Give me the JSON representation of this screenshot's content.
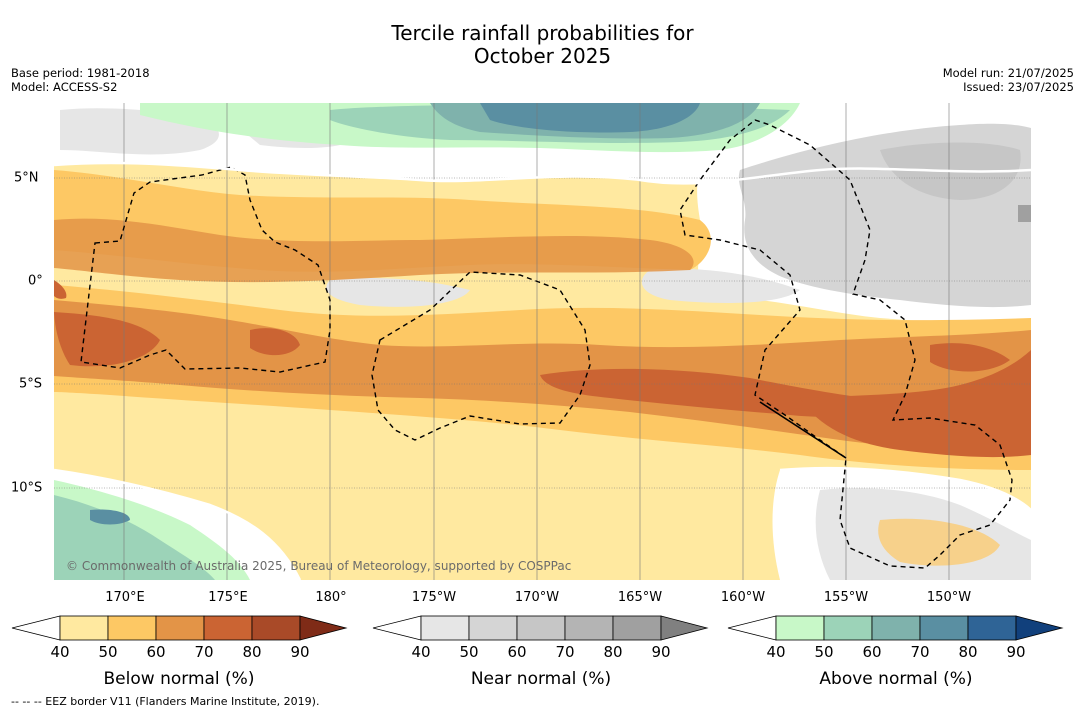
{
  "title_line1": "Tercile rainfall probabilities for",
  "title_line2": "October 2025",
  "base_period": "Base period: 1981-2018",
  "model": "Model: ACCESS-S2",
  "model_run": "Model run: 21/07/2025",
  "issued": "Issued: 23/07/2025",
  "copyright": "© Commonwealth of Australia 2025, Bureau of Meteorology, supported by COSPPac",
  "lon_labels": [
    "170°E",
    "175°E",
    "180°",
    "175°W",
    "170°W",
    "165°W",
    "160°W",
    "155°W",
    "150°W"
  ],
  "lat_labels": [
    "5°N",
    "0°",
    "5°S",
    "10°S"
  ],
  "legends": {
    "below": {
      "title": "Below normal (%)",
      "ticks": [
        "40",
        "50",
        "60",
        "70",
        "80",
        "90"
      ],
      "colors": [
        "#ffffff",
        "#ffe9a0",
        "#fdc864",
        "#e39447",
        "#cb6433",
        "#a94a28",
        "#7f2b17"
      ]
    },
    "near": {
      "title": "Near normal (%)",
      "ticks": [
        "40",
        "50",
        "60",
        "70",
        "80",
        "90"
      ],
      "colors": [
        "#ffffff",
        "#e6e6e6",
        "#d5d5d5",
        "#c6c6c6",
        "#b4b4b4",
        "#a0a0a0",
        "#808080"
      ]
    },
    "above": {
      "title": "Above normal (%)",
      "ticks": [
        "40",
        "50",
        "60",
        "70",
        "80",
        "90"
      ],
      "colors": [
        "#ffffff",
        "#c8f8c8",
        "#9cd3b8",
        "#7fb2ac",
        "#5a8fa2",
        "#2f6496",
        "#11407c"
      ]
    }
  },
  "eez_note": "--  --  -- EEZ border V11 (Flanders Marine Institute, 2019)."
}
